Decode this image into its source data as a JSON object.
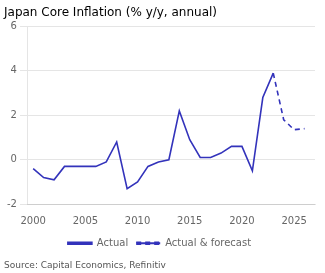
{
  "chart_data": {
    "type": "line",
    "title": "Japan Core Inflation (% y/y, annual)",
    "annotation": "Source: Capital Economics, Refinitiv",
    "xlim": [
      1999.5,
      2027
    ],
    "xticks": [
      2000,
      2005,
      2010,
      2015,
      2020,
      2025
    ],
    "ylim": [
      -2,
      6
    ],
    "yticks": [
      -2,
      0,
      2,
      4,
      6
    ],
    "grid": "y",
    "legend": "bottom",
    "series": [
      {
        "name": "Actual",
        "color": "#3333bb",
        "line_style": "solid",
        "x": [
          2000,
          2001,
          2002,
          2003,
          2004,
          2005,
          2006,
          2007,
          2008,
          2009,
          2010,
          2011,
          2012,
          2013,
          2014,
          2015,
          2016,
          2017,
          2018,
          2019,
          2020,
          2021,
          2022,
          2023
        ],
        "values": [
          -0.4,
          -0.8,
          -0.9,
          -0.3,
          -0.3,
          -0.3,
          -0.3,
          -0.1,
          0.8,
          -1.3,
          -1.0,
          -0.3,
          -0.1,
          0.0,
          2.2,
          0.9,
          0.1,
          0.1,
          0.3,
          0.6,
          0.6,
          -0.5,
          2.8,
          3.9
        ]
      },
      {
        "name": "Actual & forecast",
        "color": "#3333bb",
        "line_style": "dashed",
        "x": [
          2023,
          2024,
          2025,
          2026
        ],
        "values": [
          3.9,
          1.8,
          1.35,
          1.4
        ]
      }
    ]
  }
}
